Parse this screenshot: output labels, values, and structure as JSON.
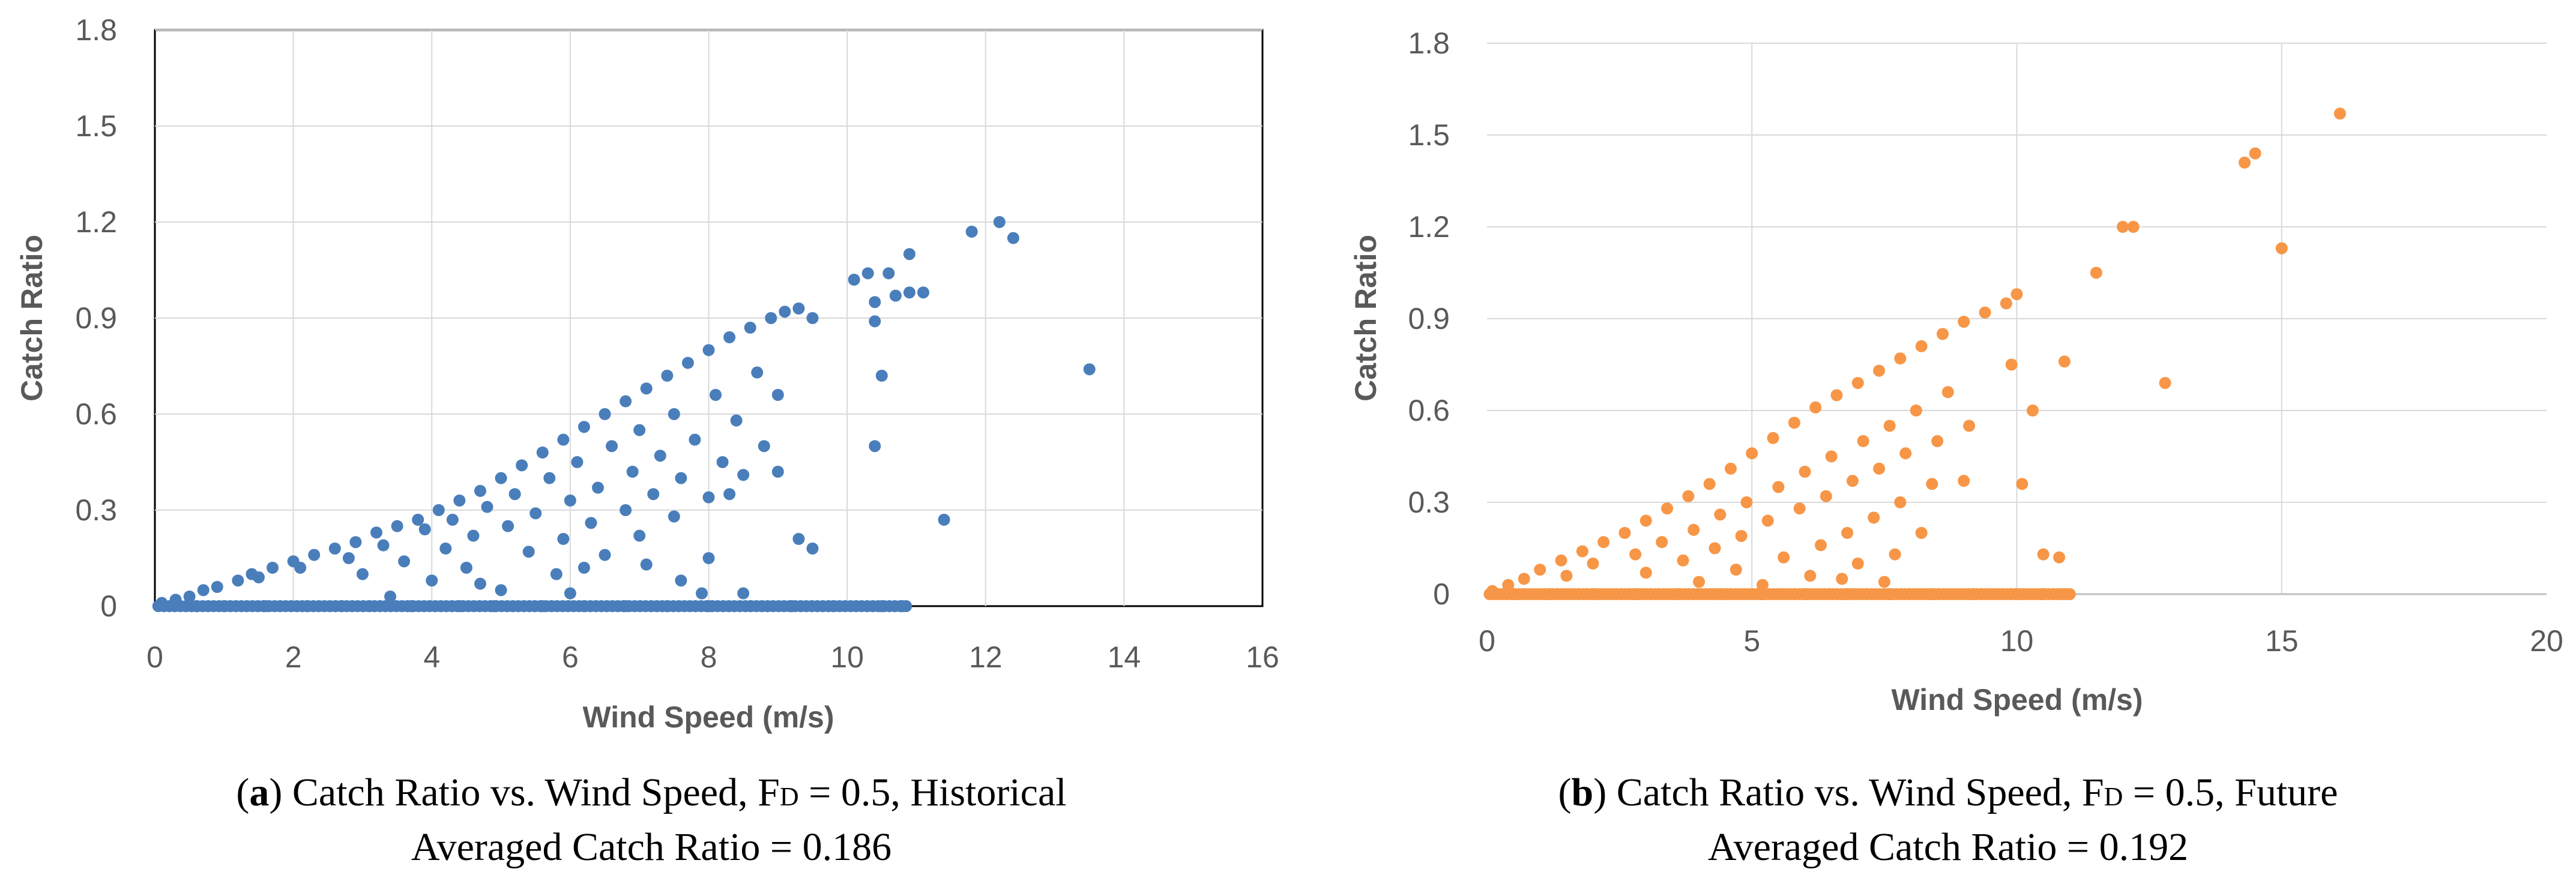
{
  "chart_data": [
    {
      "type": "scatter",
      "panel": "a",
      "color": "#4a7ebb",
      "xlabel": "Wind Speed (m/s)",
      "ylabel": "Catch Ratio",
      "xlim": [
        0,
        16
      ],
      "ylim": [
        0,
        1.8
      ],
      "xticks": [
        "0",
        "2",
        "4",
        "6",
        "8",
        "10",
        "12",
        "14",
        "16"
      ],
      "yticks": [
        "0",
        "0.3",
        "0.6",
        "0.9",
        "1.2",
        "1.5",
        "1.8"
      ],
      "grid": true,
      "points": [
        [
          0.1,
          0.01
        ],
        [
          0.3,
          0.02
        ],
        [
          0.5,
          0.03
        ],
        [
          0.7,
          0.05
        ],
        [
          0.9,
          0.06
        ],
        [
          1.2,
          0.08
        ],
        [
          1.4,
          0.1
        ],
        [
          1.7,
          0.12
        ],
        [
          2.0,
          0.14
        ],
        [
          2.3,
          0.16
        ],
        [
          2.6,
          0.18
        ],
        [
          2.9,
          0.2
        ],
        [
          3.2,
          0.23
        ],
        [
          3.5,
          0.25
        ],
        [
          3.8,
          0.27
        ],
        [
          4.1,
          0.3
        ],
        [
          4.4,
          0.33
        ],
        [
          4.7,
          0.36
        ],
        [
          5.0,
          0.4
        ],
        [
          5.3,
          0.44
        ],
        [
          5.6,
          0.48
        ],
        [
          5.9,
          0.52
        ],
        [
          6.2,
          0.56
        ],
        [
          6.5,
          0.6
        ],
        [
          6.8,
          0.64
        ],
        [
          7.1,
          0.68
        ],
        [
          7.4,
          0.72
        ],
        [
          7.7,
          0.76
        ],
        [
          8.0,
          0.8
        ],
        [
          8.3,
          0.84
        ],
        [
          8.6,
          0.87
        ],
        [
          8.9,
          0.9
        ],
        [
          9.1,
          0.92
        ],
        [
          9.3,
          0.93
        ],
        [
          9.5,
          0.9
        ],
        [
          1.5,
          0.09
        ],
        [
          2.1,
          0.12
        ],
        [
          2.8,
          0.15
        ],
        [
          3.3,
          0.19
        ],
        [
          3.9,
          0.24
        ],
        [
          4.3,
          0.27
        ],
        [
          4.8,
          0.31
        ],
        [
          5.2,
          0.35
        ],
        [
          5.7,
          0.4
        ],
        [
          6.1,
          0.45
        ],
        [
          6.6,
          0.5
        ],
        [
          7.0,
          0.55
        ],
        [
          7.5,
          0.6
        ],
        [
          8.1,
          0.66
        ],
        [
          8.7,
          0.73
        ],
        [
          3.0,
          0.1
        ],
        [
          3.6,
          0.14
        ],
        [
          4.2,
          0.18
        ],
        [
          4.6,
          0.22
        ],
        [
          5.1,
          0.25
        ],
        [
          5.5,
          0.29
        ],
        [
          6.0,
          0.33
        ],
        [
          6.4,
          0.37
        ],
        [
          6.9,
          0.42
        ],
        [
          7.3,
          0.47
        ],
        [
          7.8,
          0.52
        ],
        [
          8.4,
          0.58
        ],
        [
          9.0,
          0.66
        ],
        [
          4.0,
          0.08
        ],
        [
          4.5,
          0.12
        ],
        [
          5.4,
          0.17
        ],
        [
          5.9,
          0.21
        ],
        [
          6.3,
          0.26
        ],
        [
          6.8,
          0.3
        ],
        [
          7.2,
          0.35
        ],
        [
          7.6,
          0.4
        ],
        [
          8.2,
          0.45
        ],
        [
          8.8,
          0.5
        ],
        [
          5.0,
          0.05
        ],
        [
          5.8,
          0.1
        ],
        [
          6.5,
          0.16
        ],
        [
          7.0,
          0.22
        ],
        [
          7.5,
          0.28
        ],
        [
          8.0,
          0.34
        ],
        [
          8.5,
          0.41
        ],
        [
          3.4,
          0.03
        ],
        [
          4.7,
          0.07
        ],
        [
          6.2,
          0.12
        ],
        [
          7.1,
          0.13
        ],
        [
          7.6,
          0.08
        ],
        [
          8.0,
          0.15
        ],
        [
          8.3,
          0.35
        ],
        [
          9.0,
          0.42
        ],
        [
          9.3,
          0.21
        ],
        [
          9.5,
          0.18
        ],
        [
          6.0,
          0.04
        ],
        [
          7.9,
          0.04
        ],
        [
          8.5,
          0.04
        ],
        [
          10.1,
          1.02
        ],
        [
          10.3,
          1.04
        ],
        [
          10.6,
          1.04
        ],
        [
          10.9,
          0.98
        ],
        [
          11.1,
          0.98
        ],
        [
          10.4,
          0.95
        ],
        [
          10.4,
          0.89
        ],
        [
          10.7,
          0.97
        ],
        [
          10.9,
          1.1
        ],
        [
          10.5,
          0.72
        ],
        [
          10.4,
          0.5
        ],
        [
          11.4,
          0.27
        ],
        [
          11.8,
          1.17
        ],
        [
          12.2,
          1.2
        ],
        [
          12.4,
          1.15
        ],
        [
          13.5,
          0.74
        ],
        [
          0.6,
          0.0
        ],
        [
          1.0,
          0.0
        ],
        [
          1.6,
          0.0
        ],
        [
          2.2,
          0.0
        ],
        [
          2.7,
          0.0
        ],
        [
          3.1,
          0.0
        ],
        [
          3.7,
          0.0
        ],
        [
          4.4,
          0.0
        ],
        [
          4.9,
          0.0
        ],
        [
          5.6,
          0.0
        ],
        [
          6.2,
          0.0
        ],
        [
          6.8,
          0.0
        ],
        [
          7.4,
          0.0
        ],
        [
          8.0,
          0.0
        ],
        [
          8.6,
          0.0
        ],
        [
          9.2,
          0.0
        ],
        [
          9.8,
          0.0
        ],
        [
          10.5,
          0.0
        ],
        [
          10.8,
          0.0
        ]
      ]
    },
    {
      "type": "scatter",
      "panel": "b",
      "color": "#f79646",
      "xlabel": "Wind Speed (m/s)",
      "ylabel": "Catch Ratio",
      "xlim": [
        0,
        20
      ],
      "ylim": [
        0,
        1.8
      ],
      "xticks": [
        "0",
        "5",
        "10",
        "15",
        "20"
      ],
      "yticks": [
        "0",
        "0.3",
        "0.6",
        "0.9",
        "1.2",
        "1.5",
        "1.8"
      ],
      "grid": true,
      "points": [
        [
          0.1,
          0.01
        ],
        [
          0.4,
          0.03
        ],
        [
          0.7,
          0.05
        ],
        [
          1.0,
          0.08
        ],
        [
          1.4,
          0.11
        ],
        [
          1.8,
          0.14
        ],
        [
          2.2,
          0.17
        ],
        [
          2.6,
          0.2
        ],
        [
          3.0,
          0.24
        ],
        [
          3.4,
          0.28
        ],
        [
          3.8,
          0.32
        ],
        [
          4.2,
          0.36
        ],
        [
          4.6,
          0.41
        ],
        [
          5.0,
          0.46
        ],
        [
          5.4,
          0.51
        ],
        [
          5.8,
          0.56
        ],
        [
          6.2,
          0.61
        ],
        [
          6.6,
          0.65
        ],
        [
          7.0,
          0.69
        ],
        [
          7.4,
          0.73
        ],
        [
          7.8,
          0.77
        ],
        [
          8.2,
          0.81
        ],
        [
          8.6,
          0.85
        ],
        [
          9.0,
          0.89
        ],
        [
          9.4,
          0.92
        ],
        [
          9.8,
          0.95
        ],
        [
          10.0,
          0.98
        ],
        [
          1.5,
          0.06
        ],
        [
          2.0,
          0.1
        ],
        [
          2.8,
          0.13
        ],
        [
          3.3,
          0.17
        ],
        [
          3.9,
          0.21
        ],
        [
          4.4,
          0.26
        ],
        [
          4.9,
          0.3
        ],
        [
          5.5,
          0.35
        ],
        [
          6.0,
          0.4
        ],
        [
          6.5,
          0.45
        ],
        [
          7.1,
          0.5
        ],
        [
          7.6,
          0.55
        ],
        [
          8.1,
          0.6
        ],
        [
          8.7,
          0.66
        ],
        [
          3.0,
          0.07
        ],
        [
          3.7,
          0.11
        ],
        [
          4.3,
          0.15
        ],
        [
          4.8,
          0.19
        ],
        [
          5.3,
          0.24
        ],
        [
          5.9,
          0.28
        ],
        [
          6.4,
          0.32
        ],
        [
          6.9,
          0.37
        ],
        [
          7.4,
          0.41
        ],
        [
          7.9,
          0.46
        ],
        [
          8.5,
          0.5
        ],
        [
          9.1,
          0.55
        ],
        [
          4.0,
          0.04
        ],
        [
          4.7,
          0.08
        ],
        [
          5.6,
          0.12
        ],
        [
          6.3,
          0.16
        ],
        [
          6.8,
          0.2
        ],
        [
          7.3,
          0.25
        ],
        [
          7.8,
          0.3
        ],
        [
          8.4,
          0.36
        ],
        [
          9.0,
          0.37
        ],
        [
          5.2,
          0.03
        ],
        [
          6.1,
          0.06
        ],
        [
          7.0,
          0.1
        ],
        [
          7.7,
          0.13
        ],
        [
          8.2,
          0.2
        ],
        [
          6.7,
          0.05
        ],
        [
          7.5,
          0.04
        ],
        [
          9.9,
          0.75
        ],
        [
          10.3,
          0.6
        ],
        [
          10.1,
          0.36
        ],
        [
          10.9,
          0.76
        ],
        [
          10.5,
          0.13
        ],
        [
          10.8,
          0.12
        ],
        [
          11.5,
          1.05
        ],
        [
          12.0,
          1.2
        ],
        [
          12.2,
          1.2
        ],
        [
          12.8,
          0.69
        ],
        [
          14.3,
          1.41
        ],
        [
          14.5,
          1.44
        ],
        [
          15.0,
          1.13
        ],
        [
          16.1,
          1.57
        ],
        [
          0.5,
          0.0
        ],
        [
          1.2,
          0.0
        ],
        [
          2.0,
          0.0
        ],
        [
          2.8,
          0.0
        ],
        [
          3.6,
          0.0
        ],
        [
          4.4,
          0.0
        ],
        [
          5.2,
          0.0
        ],
        [
          6.0,
          0.0
        ],
        [
          6.8,
          0.0
        ],
        [
          7.6,
          0.0
        ],
        [
          8.4,
          0.0
        ],
        [
          9.2,
          0.0
        ],
        [
          10.0,
          0.0
        ],
        [
          10.5,
          0.0
        ],
        [
          10.9,
          0.0
        ],
        [
          11.0,
          0.0
        ]
      ]
    }
  ],
  "captions": [
    {
      "letter": "a",
      "open": "(",
      "text_before_sub": ") Catch Ratio vs. Wind Speed, F",
      "sub": "D",
      "text_after_sub": " = 0.5, Historical",
      "line2": "Averaged Catch Ratio = 0.186"
    },
    {
      "letter": "b",
      "open": "(",
      "text_before_sub": ") Catch Ratio vs. Wind Speed, F",
      "sub": "D",
      "text_after_sub": " = 0.5, Future",
      "line2": "Averaged Catch Ratio = 0.192"
    }
  ]
}
